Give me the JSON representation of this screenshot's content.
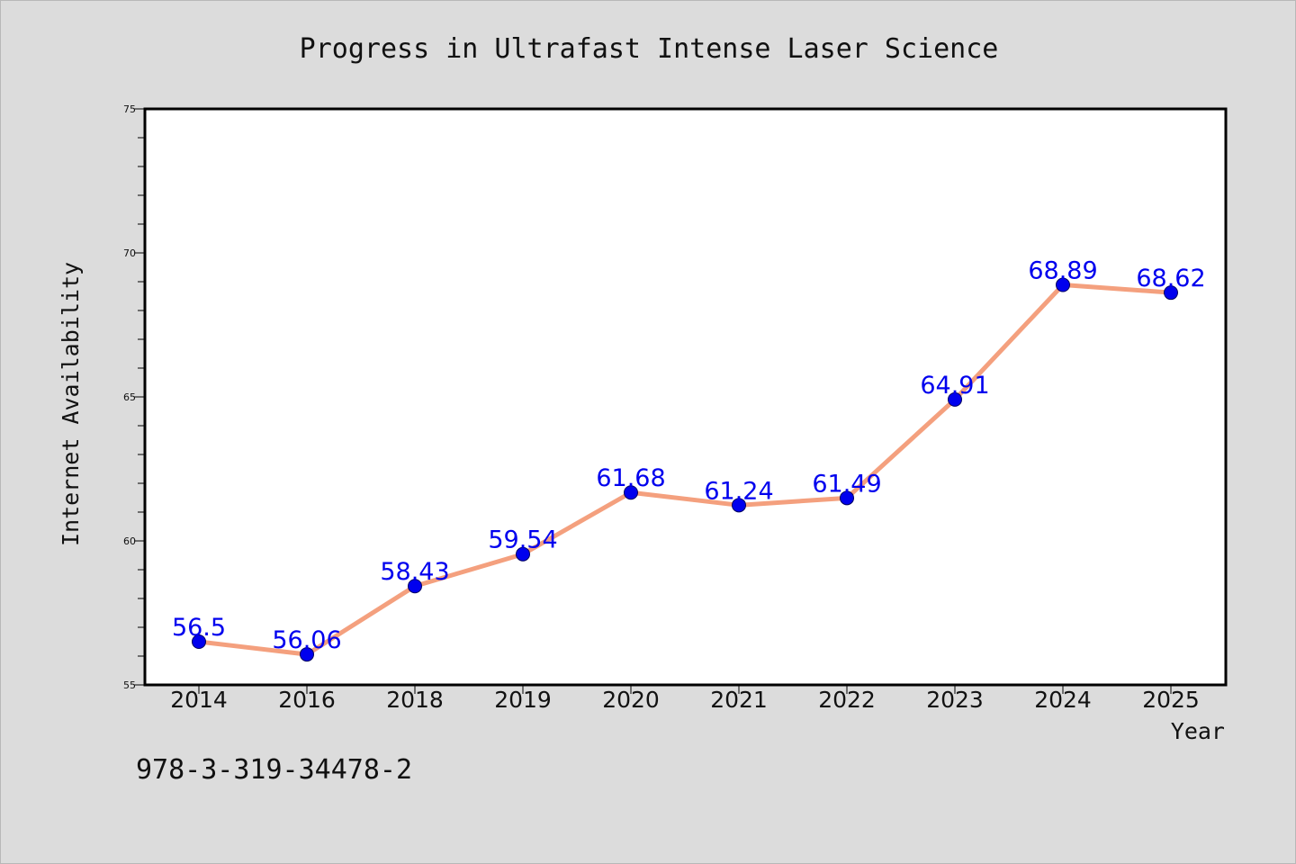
{
  "footer": {
    "isbn": "978-3-319-34478-2"
  },
  "chart_data": {
    "type": "line",
    "title": "Progress in Ultrafast Intense Laser Science",
    "xlabel": "Year",
    "ylabel": "Internet Availability",
    "categories": [
      "2014",
      "2016",
      "2018",
      "2019",
      "2020",
      "2021",
      "2022",
      "2023",
      "2024",
      "2025"
    ],
    "series": [
      {
        "values": [
          56.5,
          56.06,
          58.43,
          59.54,
          61.68,
          61.24,
          61.49,
          64.91,
          68.89,
          68.62
        ],
        "labels": [
          "56.5",
          "56.06",
          "58.43",
          "59.54",
          "61.68",
          "61.24",
          "61.49",
          "64.91",
          "68.89",
          "68.62"
        ]
      }
    ],
    "ylim": [
      55,
      75
    ],
    "yticks": [
      "55",
      "60",
      "65",
      "70",
      "75"
    ],
    "grid": false,
    "colors": {
      "line": "#f4a07e",
      "marker": "#0000ee",
      "data_label": "#0000ee",
      "plot_background": "#ffffff",
      "page_background": "#dcdcdc",
      "text": "#111111"
    }
  }
}
